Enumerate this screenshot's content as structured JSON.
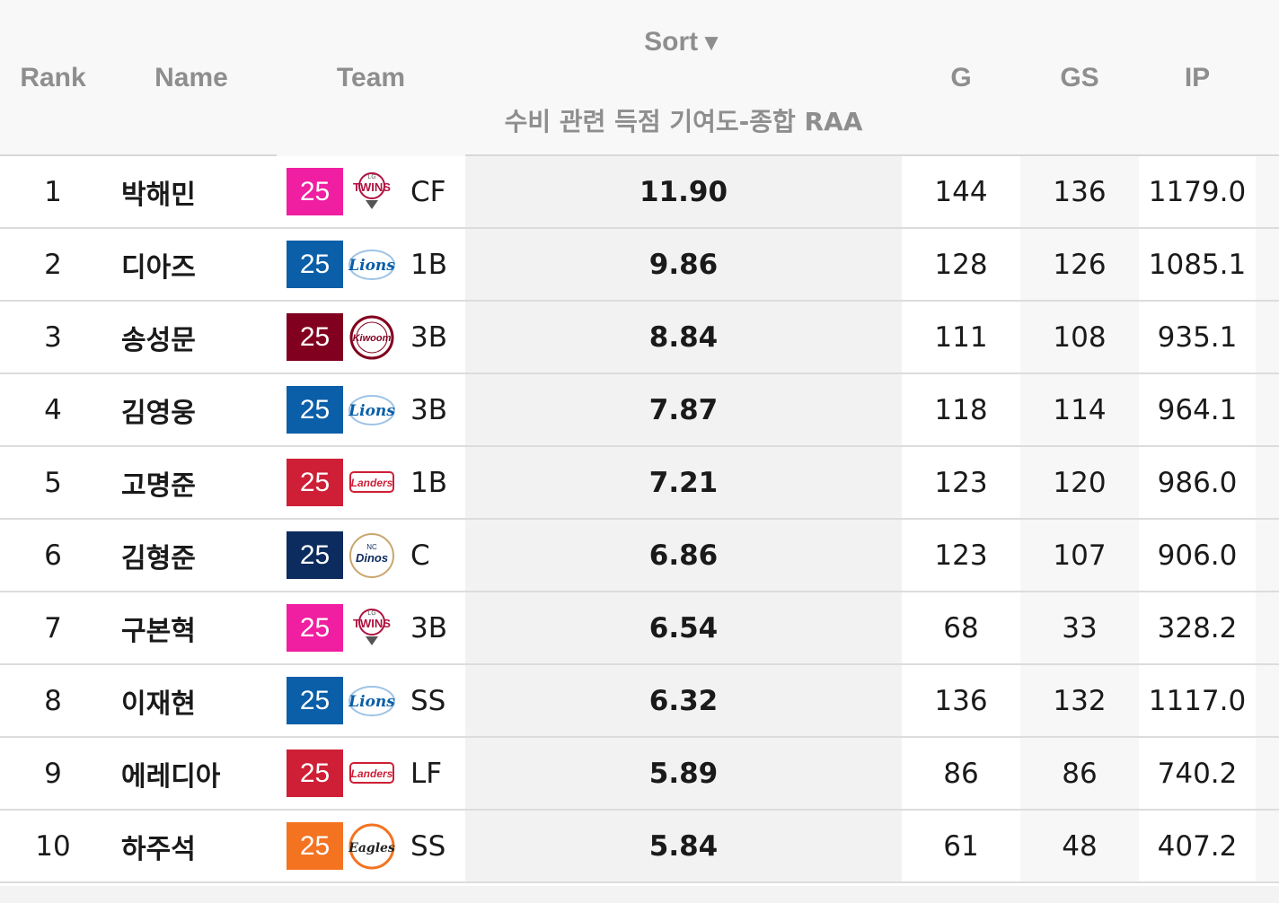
{
  "header": {
    "rank": "Rank",
    "name": "Name",
    "team": "Team",
    "sort_label": "Sort",
    "sort_arrow": "▼",
    "metric": "수비 관련 득점 기여도-종합 RAA",
    "g": "G",
    "gs": "GS",
    "ip": "IP"
  },
  "team_colors": {
    "twins": "#f01ea0",
    "lions": "#0a5fa8",
    "kiwoom": "#82001f",
    "landers": "#ce1f36",
    "dinos": "#0c2b5e",
    "eagles": "#f37321"
  },
  "rows": [
    {
      "rank": "1",
      "name": "박해민",
      "year": "25",
      "team": "twins",
      "pos": "CF",
      "raa": "11.90",
      "g": "144",
      "gs": "136",
      "ip": "1179.0"
    },
    {
      "rank": "2",
      "name": "디아즈",
      "year": "25",
      "team": "lions",
      "pos": "1B",
      "raa": "9.86",
      "g": "128",
      "gs": "126",
      "ip": "1085.1"
    },
    {
      "rank": "3",
      "name": "송성문",
      "year": "25",
      "team": "kiwoom",
      "pos": "3B",
      "raa": "8.84",
      "g": "111",
      "gs": "108",
      "ip": "935.1"
    },
    {
      "rank": "4",
      "name": "김영웅",
      "year": "25",
      "team": "lions",
      "pos": "3B",
      "raa": "7.87",
      "g": "118",
      "gs": "114",
      "ip": "964.1"
    },
    {
      "rank": "5",
      "name": "고명준",
      "year": "25",
      "team": "landers",
      "pos": "1B",
      "raa": "7.21",
      "g": "123",
      "gs": "120",
      "ip": "986.0"
    },
    {
      "rank": "6",
      "name": "김형준",
      "year": "25",
      "team": "dinos",
      "pos": "C",
      "raa": "6.86",
      "g": "123",
      "gs": "107",
      "ip": "906.0"
    },
    {
      "rank": "7",
      "name": "구본혁",
      "year": "25",
      "team": "twins",
      "pos": "3B",
      "raa": "6.54",
      "g": "68",
      "gs": "33",
      "ip": "328.2"
    },
    {
      "rank": "8",
      "name": "이재현",
      "year": "25",
      "team": "lions",
      "pos": "SS",
      "raa": "6.32",
      "g": "136",
      "gs": "132",
      "ip": "1117.0"
    },
    {
      "rank": "9",
      "name": "에레디아",
      "year": "25",
      "team": "landers",
      "pos": "LF",
      "raa": "5.89",
      "g": "86",
      "gs": "86",
      "ip": "740.2"
    },
    {
      "rank": "10",
      "name": "하주석",
      "year": "25",
      "team": "eagles",
      "pos": "SS",
      "raa": "5.84",
      "g": "61",
      "gs": "48",
      "ip": "407.2"
    }
  ],
  "logos": {
    "twins": {
      "text": "TWINS",
      "top": "LG",
      "icon": "twins-logo-icon"
    },
    "lions": {
      "text": "Lions",
      "icon": "lions-logo-icon"
    },
    "kiwoom": {
      "text": "Kiwoom",
      "icon": "kiwoom-logo-icon"
    },
    "landers": {
      "text": "Landers",
      "icon": "landers-logo-icon"
    },
    "dinos": {
      "text": "Dinos",
      "top": "NC",
      "icon": "dinos-logo-icon"
    },
    "eagles": {
      "text": "Eagles",
      "icon": "eagles-logo-icon"
    }
  }
}
